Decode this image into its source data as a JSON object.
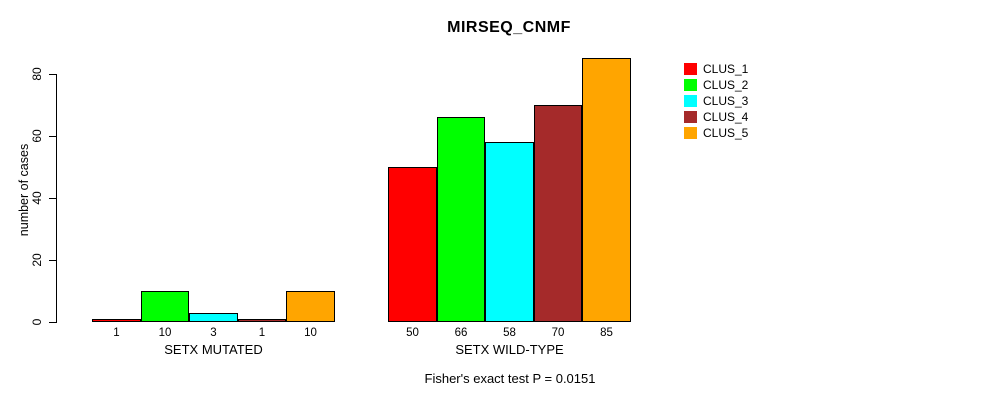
{
  "chart_data": {
    "type": "bar",
    "title": "MIRSEQ_CNMF",
    "xlabel": "",
    "ylabel": "number of cases",
    "caption": "Fisher's exact test P = 0.0151",
    "groups": [
      "SETX MUTATED",
      "SETX WILD-TYPE"
    ],
    "series": [
      {
        "name": "CLUS_1",
        "color": "#FF0000",
        "values": [
          1,
          50
        ]
      },
      {
        "name": "CLUS_2",
        "color": "#00FF00",
        "values": [
          10,
          66
        ]
      },
      {
        "name": "CLUS_3",
        "color": "#00FFFF",
        "values": [
          3,
          58
        ]
      },
      {
        "name": "CLUS_4",
        "color": "#A52A2A",
        "values": [
          1,
          70
        ]
      },
      {
        "name": "CLUS_5",
        "color": "#FFA500",
        "values": [
          10,
          85
        ]
      }
    ],
    "bar_value_labels": [
      [
        1,
        10,
        3,
        1,
        10
      ],
      [
        50,
        66,
        58,
        70,
        85
      ]
    ],
    "yticks": [
      0,
      20,
      40,
      60,
      80
    ],
    "ylim": [
      0,
      80
    ],
    "grid": false,
    "legend_position": "right",
    "legend_entries": [
      "CLUS_1",
      "CLUS_2",
      "CLUS_3",
      "CLUS_4",
      "CLUS_5"
    ],
    "axis_color": "#000000",
    "background_color": "#FFFFFF"
  }
}
